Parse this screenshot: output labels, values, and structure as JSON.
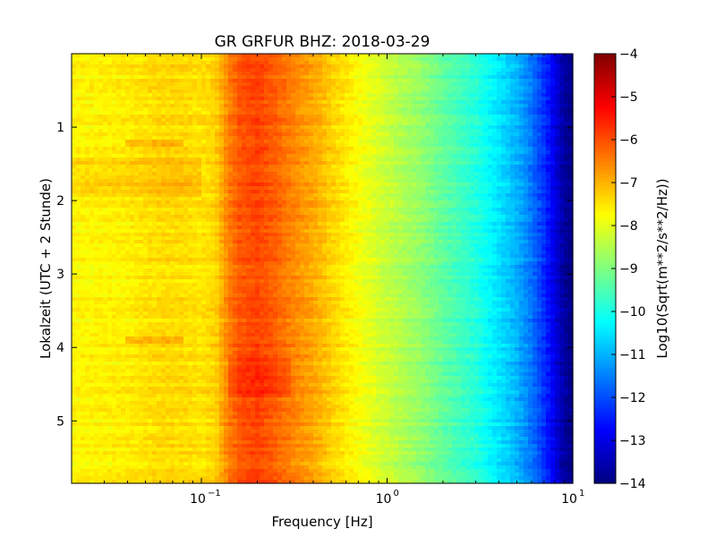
{
  "chart_data": {
    "type": "heatmap",
    "title": "GR GRFUR BHZ: 2018-03-29",
    "xlabel": "Frequency [Hz]",
    "ylabel": "Lokalzeit (UTC + 2 Stunde)",
    "x_scale": "log",
    "xlim": [
      0.02,
      10
    ],
    "x_ticks": [
      {
        "value": 0.1,
        "base": "10",
        "exp": "-1"
      },
      {
        "value": 1,
        "base": "10",
        "exp": "0"
      },
      {
        "value": 10,
        "base": "10",
        "exp": "1"
      }
    ],
    "ylim": [
      5.85,
      0
    ],
    "y_ticks": [
      {
        "value": 1,
        "label": "1"
      },
      {
        "value": 2,
        "label": "2"
      },
      {
        "value": 3,
        "label": "3"
      },
      {
        "value": 4,
        "label": "4"
      },
      {
        "value": 5,
        "label": "5"
      }
    ],
    "colorbar": {
      "label": "Log10(Sqrt(m**2/s**2/Hz))",
      "colormap": "jet",
      "range": [
        -14,
        -4
      ],
      "ticks": [
        {
          "value": -4,
          "label": "−4"
        },
        {
          "value": -5,
          "label": "−5"
        },
        {
          "value": -6,
          "label": "−6"
        },
        {
          "value": -7,
          "label": "−7"
        },
        {
          "value": -8,
          "label": "−8"
        },
        {
          "value": -9,
          "label": "−9"
        },
        {
          "value": -10,
          "label": "−10"
        },
        {
          "value": -11,
          "label": "−11"
        },
        {
          "value": -12,
          "label": "−12"
        },
        {
          "value": -13,
          "label": "−13"
        },
        {
          "value": -14,
          "label": "−14"
        }
      ]
    },
    "spectrum_profile": {
      "frequency_hz": [
        0.02,
        0.04,
        0.06,
        0.08,
        0.1,
        0.12,
        0.14,
        0.16,
        0.2,
        0.25,
        0.3,
        0.4,
        0.5,
        0.7,
        1.0,
        1.5,
        2.0,
        3.0,
        4.0,
        5.0,
        6.0,
        7.0,
        8.0,
        9.0,
        10.0
      ],
      "log10_amplitude": [
        -7.7,
        -7.6,
        -7.4,
        -7.4,
        -7.5,
        -7.3,
        -6.5,
        -6.1,
        -5.9,
        -6.2,
        -6.5,
        -6.9,
        -7.3,
        -7.8,
        -8.3,
        -8.8,
        -9.3,
        -9.9,
        -10.5,
        -11.0,
        -11.6,
        -12.3,
        -13.0,
        -13.7,
        -14.0
      ]
    },
    "time_features": [
      {
        "time_start": 1.15,
        "time_end": 1.25,
        "freq_start": 0.04,
        "freq_end": 0.08,
        "delta": 0.5
      },
      {
        "time_start": 1.4,
        "time_end": 1.95,
        "freq_start": 0.02,
        "freq_end": 0.1,
        "delta": 0.3
      },
      {
        "time_start": 3.85,
        "time_end": 3.95,
        "freq_start": 0.04,
        "freq_end": 0.08,
        "delta": 0.5
      },
      {
        "time_start": 4.15,
        "time_end": 4.7,
        "freq_start": 0.14,
        "freq_end": 0.3,
        "delta": 0.3
      }
    ],
    "grid": false
  }
}
